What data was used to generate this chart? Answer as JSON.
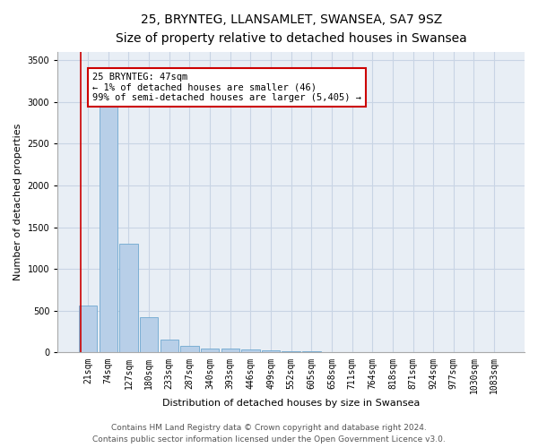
{
  "title_line1": "25, BRYNTEG, LLANSAMLET, SWANSEA, SA7 9SZ",
  "title_line2": "Size of property relative to detached houses in Swansea",
  "xlabel": "Distribution of detached houses by size in Swansea",
  "ylabel": "Number of detached properties",
  "categories": [
    "21sqm",
    "74sqm",
    "127sqm",
    "180sqm",
    "233sqm",
    "287sqm",
    "340sqm",
    "393sqm",
    "446sqm",
    "499sqm",
    "552sqm",
    "605sqm",
    "658sqm",
    "711sqm",
    "764sqm",
    "818sqm",
    "871sqm",
    "924sqm",
    "977sqm",
    "1030sqm",
    "1083sqm"
  ],
  "values": [
    560,
    2950,
    1300,
    420,
    155,
    75,
    50,
    45,
    40,
    30,
    20,
    15,
    10,
    8,
    6,
    5,
    4,
    3,
    2,
    1,
    1
  ],
  "bar_color": "#b8cfe8",
  "bar_edge_color": "#6fa8d0",
  "grid_color": "#c8d4e4",
  "bg_color": "#e8eef5",
  "annotation_text": "25 BRYNTEG: 47sqm\n← 1% of detached houses are smaller (46)\n99% of semi-detached houses are larger (5,405) →",
  "annotation_box_color": "#ffffff",
  "annotation_box_edge": "#cc0000",
  "redline_color": "#cc0000",
  "ylim": [
    0,
    3600
  ],
  "yticks": [
    0,
    500,
    1000,
    1500,
    2000,
    2500,
    3000,
    3500
  ],
  "footer_line1": "Contains HM Land Registry data © Crown copyright and database right 2024.",
  "footer_line2": "Contains public sector information licensed under the Open Government Licence v3.0.",
  "title_fontsize": 10,
  "subtitle_fontsize": 9,
  "axis_label_fontsize": 8,
  "tick_fontsize": 7,
  "annotation_fontsize": 7.5,
  "footer_fontsize": 6.5
}
